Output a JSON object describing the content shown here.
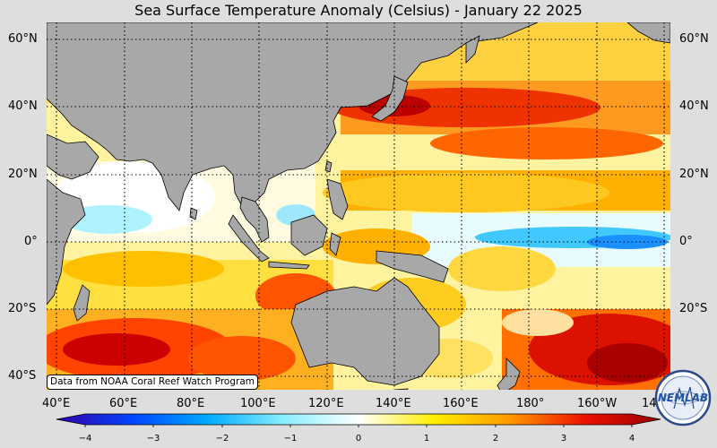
{
  "title": "Sea Surface Temperature Anomaly (Celsius) - January 22 2025",
  "credit": "Data from NOAA Coral Reef Watch Program",
  "logo_text": "NEMLAB",
  "lat_labels": [
    "60°N",
    "40°N",
    "20°N",
    "0°",
    "20°S",
    "40°S"
  ],
  "lon_labels": [
    "40°E",
    "60°E",
    "80°E",
    "100°E",
    "120°E",
    "140°E",
    "160°E",
    "180°",
    "160°W",
    "14"
  ],
  "colorbar": {
    "ticks": [
      "−4",
      "−3",
      "−2",
      "−1",
      "0",
      "1",
      "2",
      "3",
      "4"
    ],
    "colors": [
      "#3300aa",
      "#0044ff",
      "#00aaff",
      "#88eeff",
      "#ffffff",
      "#ffee00",
      "#ff9900",
      "#ee1100",
      "#990000"
    ]
  },
  "colors": {
    "land": "#a8a8a8",
    "background": "#dedede"
  }
}
